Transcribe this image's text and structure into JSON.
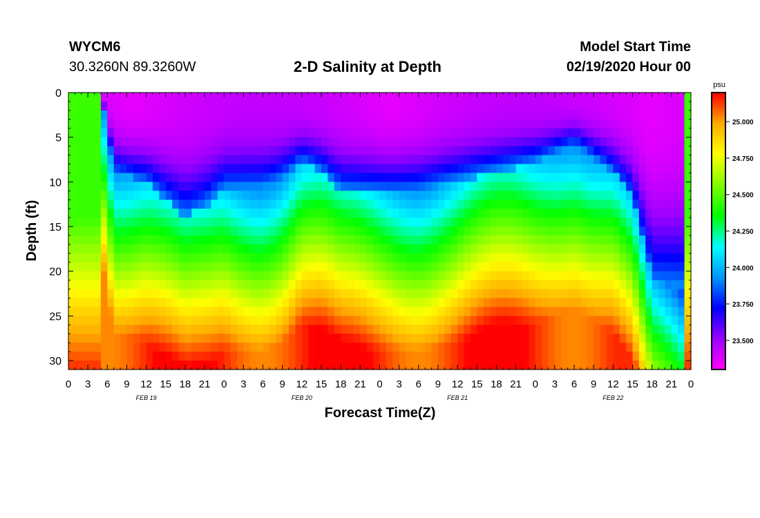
{
  "header": {
    "station": "WYCM6",
    "coordinates": "30.3260N 89.3260W",
    "model_start_label": "Model Start Time",
    "model_start_value": "02/19/2020 Hour 00"
  },
  "chart_data": {
    "type": "heatmap",
    "title": "2-D Salinity at Depth",
    "xlabel": "Forecast Time(Z)",
    "ylabel": "Depth (ft)",
    "x_range_hours": [
      0,
      96
    ],
    "x_tick_labels": [
      "0",
      "3",
      "6",
      "9",
      "12",
      "15",
      "18",
      "21",
      "0",
      "3",
      "6",
      "9",
      "12",
      "15",
      "18",
      "21",
      "0",
      "3",
      "6",
      "9",
      "12",
      "15",
      "18",
      "21",
      "0",
      "3",
      "6",
      "9",
      "12",
      "15",
      "18",
      "21",
      "0"
    ],
    "date_labels": [
      {
        "label": "FEB 19",
        "hour": 12
      },
      {
        "label": "FEB 20",
        "hour": 36
      },
      {
        "label": "FEB 21",
        "hour": 60
      },
      {
        "label": "FEB 22",
        "hour": 84
      }
    ],
    "ylim": [
      31,
      0
    ],
    "y_ticks": [
      0,
      5,
      10,
      15,
      20,
      25,
      30
    ],
    "colorbar": {
      "unit": "psu",
      "range": [
        23.3,
        25.2
      ],
      "tick_values": [
        23.5,
        23.75,
        24.0,
        24.25,
        24.5,
        24.75,
        25.0
      ],
      "tick_labels": [
        "23.500",
        "23.750",
        "24.000",
        "24.250",
        "24.500",
        "24.750",
        "25.000"
      ],
      "colors": [
        "#ff00ff",
        "#9b00ff",
        "#0000ff",
        "#0096ff",
        "#00ffff",
        "#00ff00",
        "#80ff00",
        "#ffff00",
        "#ffaa00",
        "#ff0000"
      ]
    },
    "structure": {
      "description_keys": [
        "surface_layer",
        "halocline",
        "bottom_layer"
      ],
      "halocline_depth_ft_by_hour": [
        [
          0,
          0
        ],
        [
          5,
          0
        ],
        [
          7,
          9
        ],
        [
          12,
          10
        ],
        [
          15,
          12
        ],
        [
          18,
          14
        ],
        [
          21,
          13
        ],
        [
          24,
          11
        ],
        [
          30,
          11
        ],
        [
          33,
          10
        ],
        [
          36,
          8
        ],
        [
          39,
          9
        ],
        [
          42,
          11
        ],
        [
          48,
          11
        ],
        [
          54,
          11
        ],
        [
          60,
          10
        ],
        [
          66,
          9
        ],
        [
          72,
          8
        ],
        [
          78,
          6
        ],
        [
          84,
          9
        ],
        [
          87,
          12
        ],
        [
          90,
          21
        ],
        [
          96,
          22
        ]
      ]
    }
  }
}
